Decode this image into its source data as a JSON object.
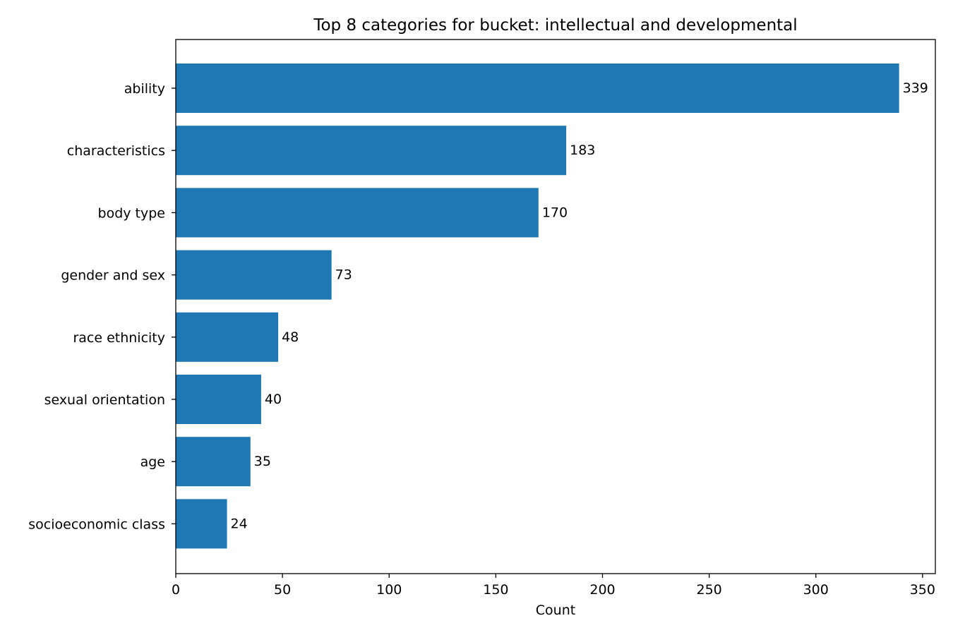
{
  "chart_data": {
    "type": "bar",
    "orientation": "horizontal",
    "title": "Top 8 categories for bucket: intellectual and developmental",
    "xlabel": "Count",
    "ylabel": "",
    "categories": [
      "ability",
      "characteristics",
      "body type",
      "gender and sex",
      "race ethnicity",
      "sexual orientation",
      "age",
      "socioeconomic class"
    ],
    "values": [
      339,
      183,
      170,
      73,
      48,
      40,
      35,
      24
    ],
    "xlim": [
      0,
      356
    ],
    "xticks": [
      0,
      50,
      100,
      150,
      200,
      250,
      300,
      350
    ],
    "bar_color": "#1f77b4",
    "grid": false,
    "legend": "none"
  }
}
